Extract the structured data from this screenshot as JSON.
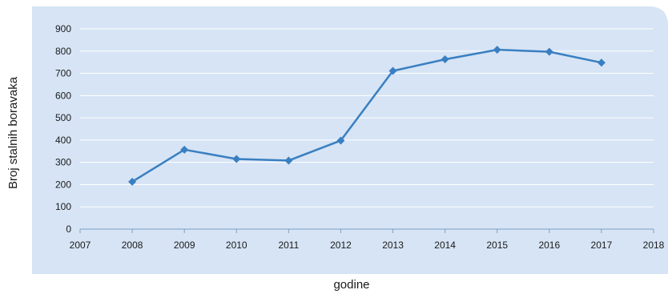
{
  "chart_data": {
    "type": "line",
    "title": "",
    "xlabel": "godine",
    "ylabel": "Broj stalnih boravaka",
    "x": [
      2008,
      2009,
      2010,
      2011,
      2012,
      2013,
      2014,
      2015,
      2016,
      2017
    ],
    "series": [
      {
        "values": [
          213,
          357,
          315,
          308,
          398,
          711,
          763,
          806,
          797,
          748
        ]
      }
    ],
    "xlim": [
      2007,
      2018
    ],
    "ylim": [
      0,
      900
    ],
    "xticks": [
      "2007",
      "2008",
      "2009",
      "2010",
      "2011",
      "2012",
      "2013",
      "2014",
      "2015",
      "2016",
      "2017",
      "2018"
    ],
    "yticks": [
      "0",
      "100",
      "200",
      "300",
      "400",
      "500",
      "600",
      "700",
      "800",
      "900"
    ],
    "grid": true,
    "legend": "none",
    "colors": {
      "panel": "#d6e4f5",
      "line": "#3a7fc1",
      "grid": "#ffffff",
      "axis": "#7f9fc4"
    }
  }
}
